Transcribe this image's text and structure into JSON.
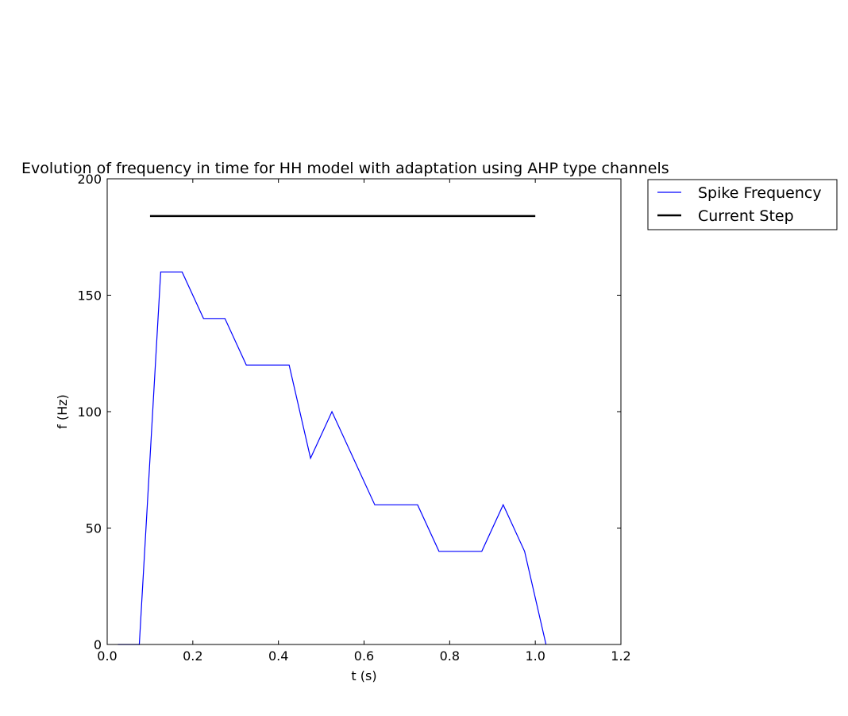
{
  "chart_data": {
    "type": "line",
    "title": "Evolution of frequency in time for HH model with adaptation using AHP type channels",
    "xlabel": "t (s)",
    "ylabel": "f (Hz)",
    "xlim": [
      0.0,
      1.2
    ],
    "ylim": [
      0,
      200
    ],
    "x_ticks": [
      0.0,
      0.2,
      0.4,
      0.6,
      0.8,
      1.0,
      1.2
    ],
    "x_tick_labels": [
      "0.0",
      "0.2",
      "0.4",
      "0.6",
      "0.8",
      "1.0",
      "1.2"
    ],
    "y_ticks": [
      0,
      50,
      100,
      150,
      200
    ],
    "y_tick_labels": [
      "0",
      "50",
      "100",
      "150",
      "200"
    ],
    "grid": false,
    "legend_position": "outside-top-right",
    "series": [
      {
        "name": "Spike Frequency",
        "color": "#0000ff",
        "style": "solid-thin",
        "x": [
          0.025,
          0.075,
          0.125,
          0.175,
          0.225,
          0.275,
          0.325,
          0.375,
          0.425,
          0.475,
          0.525,
          0.575,
          0.625,
          0.675,
          0.725,
          0.775,
          0.825,
          0.875,
          0.925,
          0.975,
          1.025
        ],
        "y": [
          0,
          0,
          160,
          160,
          140,
          140,
          120,
          120,
          120,
          80,
          100,
          80,
          60,
          60,
          60,
          40,
          40,
          40,
          60,
          40,
          0
        ]
      },
      {
        "name": "Current Step",
        "color": "#000000",
        "style": "solid-thick",
        "x": [
          0.1,
          1.0
        ],
        "y": [
          184,
          184
        ]
      }
    ]
  }
}
